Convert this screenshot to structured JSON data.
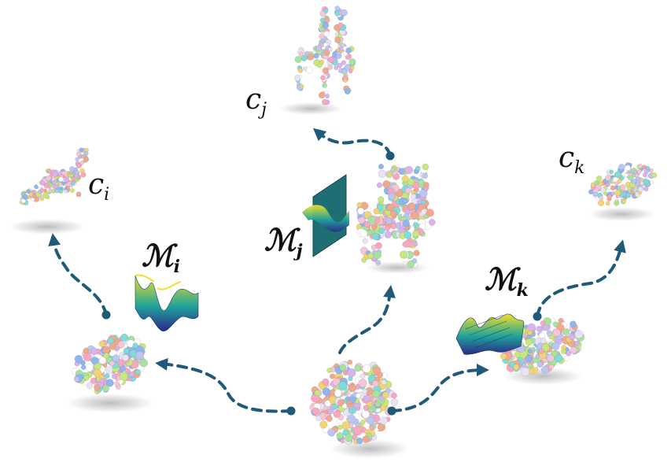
{
  "labels": {
    "c_i": {
      "base": "c",
      "sub": "i"
    },
    "c_j": {
      "base": "c",
      "sub": "j"
    },
    "c_k": {
      "base": "c",
      "sub": "k"
    },
    "m_i": {
      "base": "ℳ",
      "sub": "i"
    },
    "m_j": {
      "base": "ℳ",
      "sub": "j"
    },
    "m_k": {
      "base": "ℳ",
      "sub": "k"
    }
  },
  "colors": {
    "arrow": "#1f5a78",
    "plane": "#1f6e74",
    "surface_low": "#2a2a8a",
    "surface_mid": "#1fa39a",
    "surface_high": "#f2e02a"
  },
  "objects": {
    "source": "noise-point-cloud",
    "targets": [
      "airplane-point-cloud",
      "chair-point-cloud",
      "car-point-cloud"
    ]
  }
}
